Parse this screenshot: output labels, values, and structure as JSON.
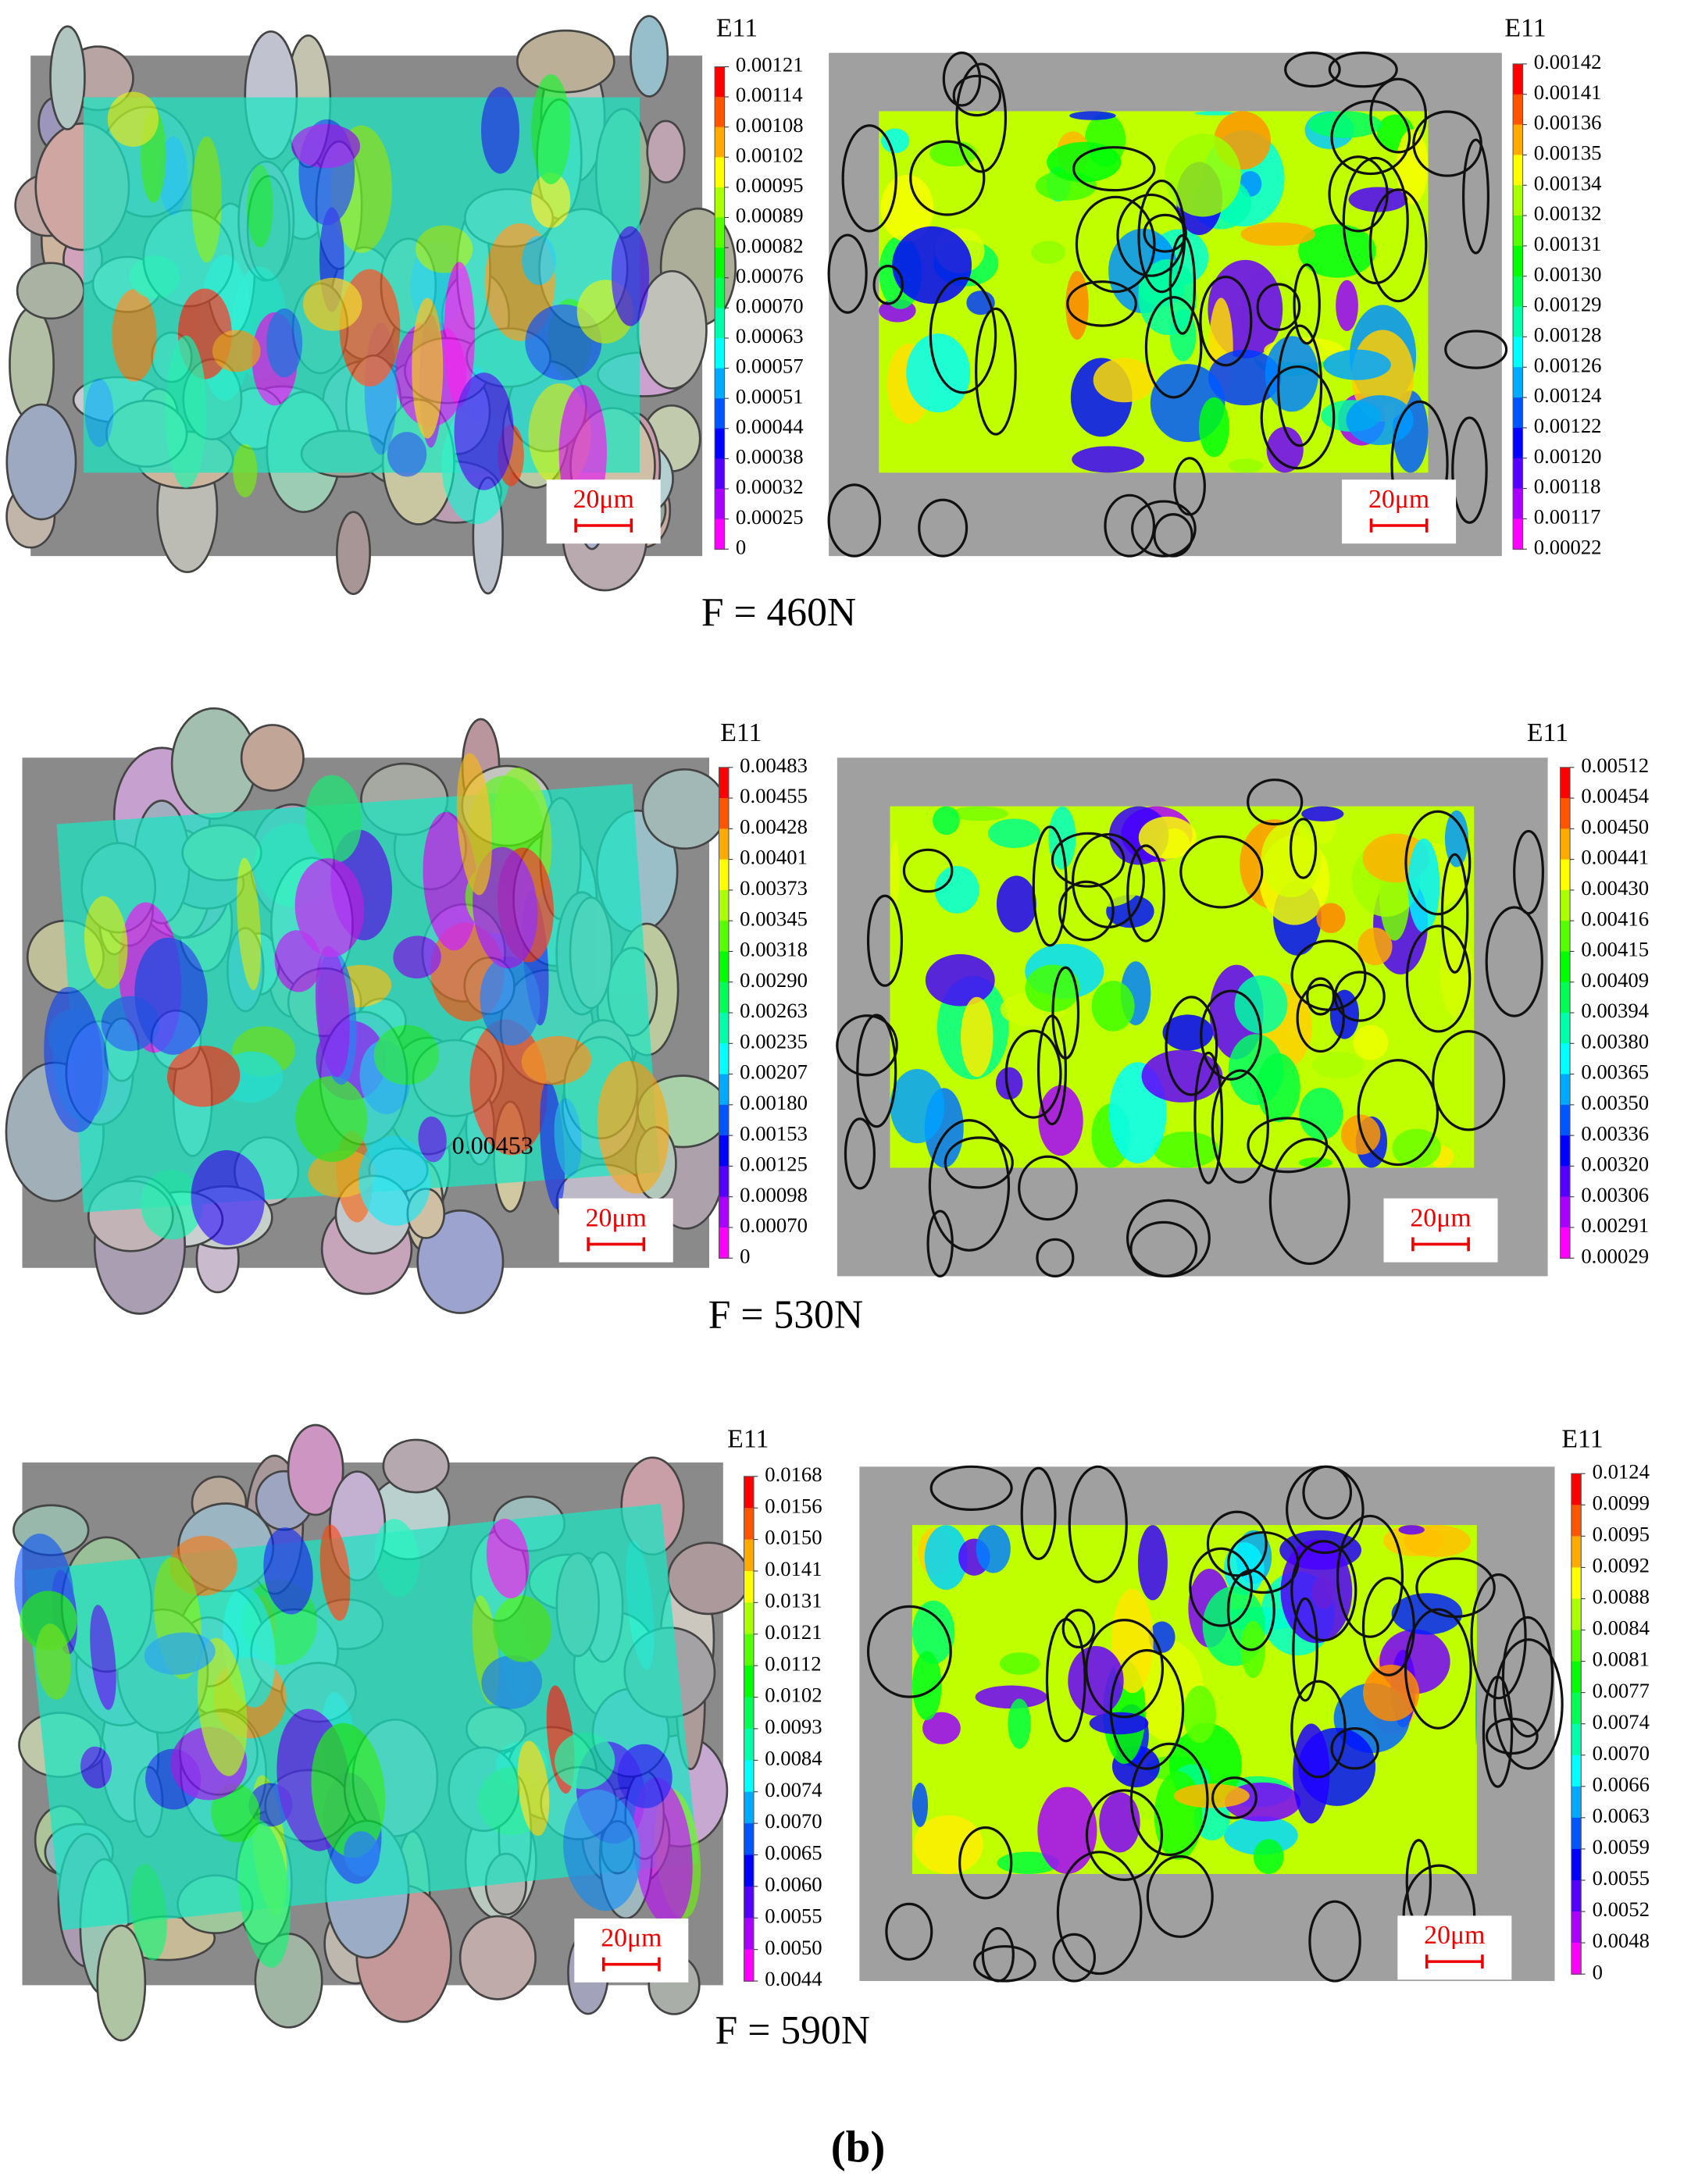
{
  "panels": [
    {
      "caption": "F = 460N",
      "left": {
        "colorbar": {
          "title": "E11",
          "labels": [
            "0.00121",
            "0.00114",
            "0.00108",
            "0.00102",
            "0.00095",
            "0.00089",
            "0.00082",
            "0.00076",
            "0.00070",
            "0.00063",
            "0.00057",
            "0.00051",
            "0.00044",
            "0.00038",
            "0.00032",
            "0.00025",
            "0"
          ]
        },
        "scale_bar": "20μm"
      },
      "right": {
        "colorbar": {
          "title": "E11",
          "labels": [
            "0.00142",
            "0.00141",
            "0.00136",
            "0.00135",
            "0.00134",
            "0.00132",
            "0.00131",
            "0.00130",
            "0.00129",
            "0.00128",
            "0.00126",
            "0.00124",
            "0.00122",
            "0.00120",
            "0.00118",
            "0.00117",
            "0.00022"
          ]
        },
        "scale_bar": "20μm"
      }
    },
    {
      "caption": "F = 530N",
      "left": {
        "colorbar": {
          "title": "E11",
          "labels": [
            "0.00483",
            "0.00455",
            "0.00428",
            "0.00401",
            "0.00373",
            "0.00345",
            "0.00318",
            "0.00290",
            "0.00263",
            "0.00235",
            "0.00207",
            "0.00180",
            "0.00153",
            "0.00125",
            "0.00098",
            "0.00070",
            "0"
          ]
        },
        "scale_bar": "20μm",
        "annotation": "0.00453"
      },
      "right": {
        "colorbar": {
          "title": "E11",
          "labels": [
            "0.00512",
            "0.00454",
            "0.00450",
            "0.00441",
            "0.00430",
            "0.00416",
            "0.00415",
            "0.00409",
            "0.00394",
            "0.00380",
            "0.00365",
            "0.00350",
            "0.00336",
            "0.00320",
            "0.00306",
            "0.00291",
            "0.00029"
          ]
        },
        "scale_bar": "20μm"
      }
    },
    {
      "caption": "F = 590N",
      "left": {
        "colorbar": {
          "title": "E11",
          "labels": [
            "0.0168",
            "0.0156",
            "0.0150",
            "0.0141",
            "0.0131",
            "0.0121",
            "0.0112",
            "0.0102",
            "0.0093",
            "0.0084",
            "0.0074",
            "0.0070",
            "0.0065",
            "0.0060",
            "0.0055",
            "0.0050",
            "0.0044"
          ]
        },
        "scale_bar": "20μm"
      },
      "right": {
        "colorbar": {
          "title": "E11",
          "labels": [
            "0.0124",
            "0.0099",
            "0.0095",
            "0.0092",
            "0.0088",
            "0.0084",
            "0.0081",
            "0.0077",
            "0.0074",
            "0.0070",
            "0.0066",
            "0.0063",
            "0.0059",
            "0.0055",
            "0.0052",
            "0.0048",
            "0"
          ]
        },
        "scale_bar": "20μm"
      }
    }
  ],
  "figure_label": "(b)"
}
